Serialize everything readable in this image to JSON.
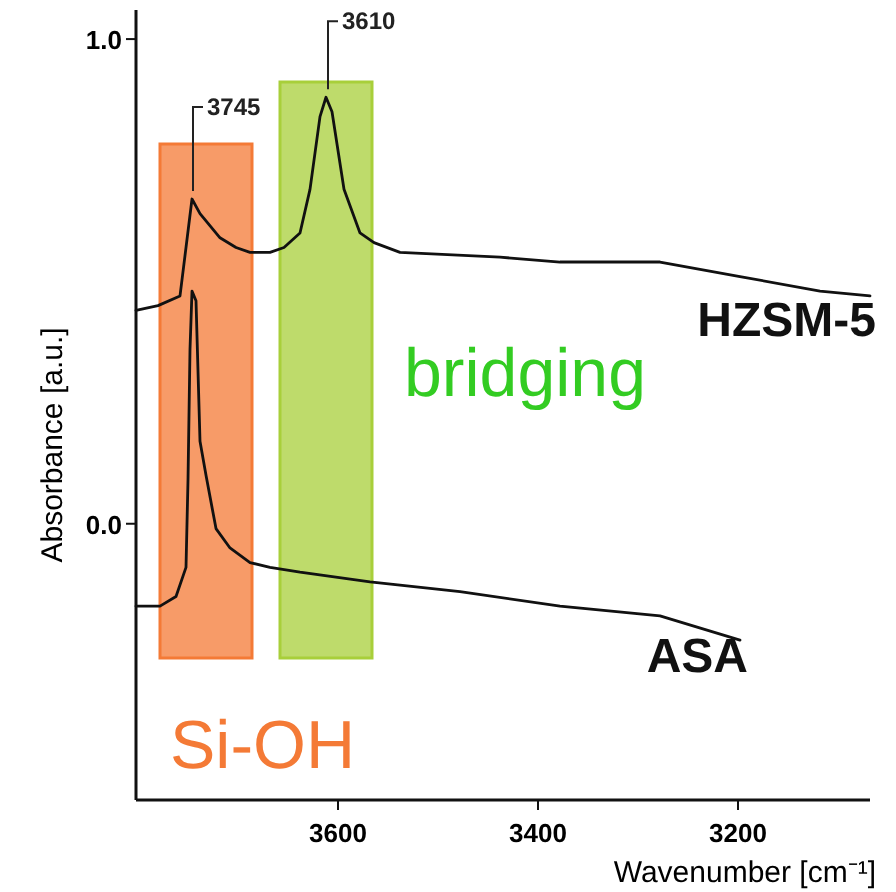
{
  "chart_data": {
    "type": "line",
    "xlabel": "Wavenumber [cm⁻¹]",
    "ylabel": "Absorbance [a.u.]",
    "xlim": [
      3802,
      3068
    ],
    "ylim": [
      -0.57,
      1.06
    ],
    "xticks": [
      3600,
      3400,
      3200
    ],
    "yticks": [
      {
        "value": 0,
        "label": "0.0"
      },
      {
        "value": 1,
        "label": "1.0"
      }
    ],
    "grid": false,
    "marker": "none",
    "line_style": "solid",
    "series": [
      {
        "name": "HZSM-5",
        "color": "#111111",
        "x": [
          3802,
          3780,
          3758,
          3746,
          3738,
          3718,
          3702,
          3688,
          3668,
          3654,
          3638,
          3628,
          3618,
          3612,
          3606,
          3594,
          3578,
          3564,
          3538,
          3438,
          3378,
          3278,
          3198,
          3118,
          3068
        ],
        "values": [
          0.44,
          0.45,
          0.47,
          0.67,
          0.64,
          0.59,
          0.57,
          0.56,
          0.56,
          0.57,
          0.6,
          0.69,
          0.84,
          0.88,
          0.85,
          0.69,
          0.6,
          0.58,
          0.56,
          0.55,
          0.54,
          0.54,
          0.51,
          0.48,
          0.47
        ]
      },
      {
        "name": "ASA",
        "color": "#111111",
        "x": [
          3802,
          3778,
          3762,
          3752,
          3750,
          3748,
          3746,
          3742,
          3738,
          3732,
          3722,
          3708,
          3688,
          3668,
          3638,
          3568,
          3478,
          3378,
          3278,
          3198
        ],
        "values": [
          -0.17,
          -0.17,
          -0.15,
          -0.09,
          0.09,
          0.36,
          0.48,
          0.46,
          0.17,
          0.1,
          -0.01,
          -0.05,
          -0.08,
          -0.09,
          -0.1,
          -0.12,
          -0.14,
          -0.17,
          -0.19,
          -0.24
        ]
      }
    ],
    "bands": [
      {
        "axis": "x",
        "from": 3778,
        "to": 3686,
        "label": "Si-OH",
        "color": "#f47a36"
      },
      {
        "axis": "x",
        "from": 3658,
        "to": 3566,
        "label": "bridging",
        "color": "#a8cf3a"
      }
    ],
    "annotations": [
      {
        "text": "3745",
        "x": 3745,
        "y": 0.67
      },
      {
        "text": "3610",
        "x": 3610,
        "y": 0.88
      }
    ]
  }
}
